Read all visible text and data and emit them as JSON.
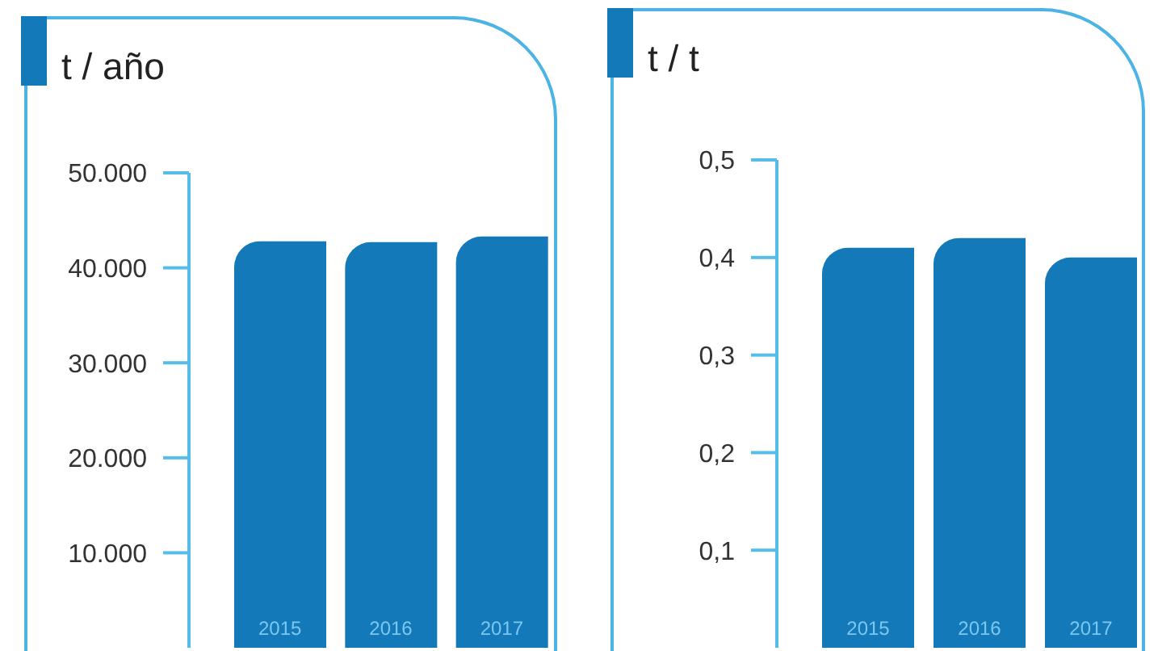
{
  "chart_data": [
    {
      "type": "bar",
      "ylabel": "t / año",
      "categories": [
        "2015",
        "2016",
        "2017"
      ],
      "values": [
        42800,
        42700,
        43300
      ],
      "color": "#1479b8",
      "ylim": [
        0,
        50000
      ],
      "yticks": [
        {
          "value": 10000,
          "label": "10.000"
        },
        {
          "value": 20000,
          "label": "20.000"
        },
        {
          "value": 30000,
          "label": "30.000"
        },
        {
          "value": 40000,
          "label": "40.000"
        },
        {
          "value": 50000,
          "label": "50.000"
        }
      ]
    },
    {
      "type": "bar",
      "ylabel": "t / t",
      "categories": [
        "2015",
        "2016",
        "2017"
      ],
      "values": [
        0.41,
        0.42,
        0.4
      ],
      "color": "#1479b8",
      "ylim": [
        0,
        0.5
      ],
      "yticks": [
        {
          "value": 0.1,
          "label": "0,1"
        },
        {
          "value": 0.2,
          "label": "0,2"
        },
        {
          "value": 0.3,
          "label": "0,3"
        },
        {
          "value": 0.4,
          "label": "0,4"
        },
        {
          "value": 0.5,
          "label": "0,5"
        }
      ]
    }
  ]
}
